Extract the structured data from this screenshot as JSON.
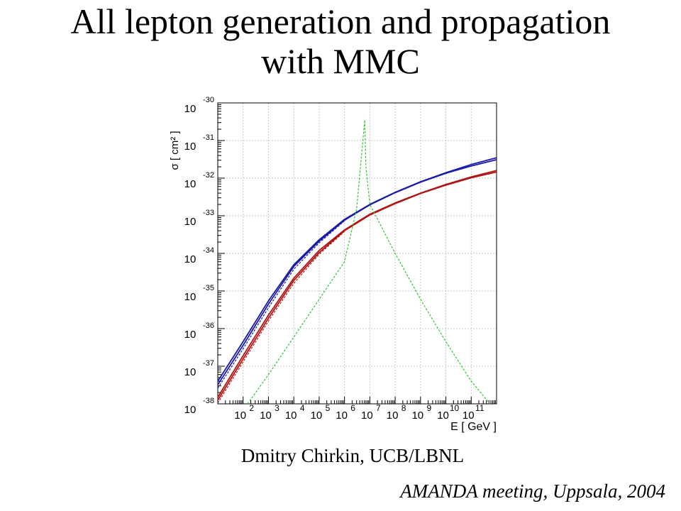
{
  "slide": {
    "title_line1": "All lepton generation and propagation",
    "title_line2": "with MMC",
    "author": "Dmitry Chirkin, UCB/LBNL",
    "meeting": "AMANDA meeting, Uppsala, 2004"
  },
  "chart_data": {
    "type": "line",
    "title": "",
    "xlabel": "E [ GeV ]",
    "ylabel": "σ [ cm² ]",
    "x_scale": "log",
    "y_scale": "log",
    "xlim": [
      10,
      1000000000000.0
    ],
    "ylim": [
      1e-38,
      1e-30
    ],
    "grid": true,
    "x_tick_labels": [
      {
        "base": "10",
        "exp": "2",
        "value": 100
      },
      {
        "base": "10",
        "exp": "3",
        "value": 1000
      },
      {
        "base": "10",
        "exp": "4",
        "value": 10000
      },
      {
        "base": "10",
        "exp": "5",
        "value": 100000
      },
      {
        "base": "10",
        "exp": "6",
        "value": 1000000
      },
      {
        "base": "10",
        "exp": "7",
        "value": 10000000
      },
      {
        "base": "10",
        "exp": "8",
        "value": 100000000
      },
      {
        "base": "10",
        "exp": "9",
        "value": 1000000000
      },
      {
        "base": "10",
        "exp": "10",
        "value": 10000000000
      },
      {
        "base": "10",
        "exp": "11",
        "value": 100000000000
      }
    ],
    "y_tick_labels": [
      {
        "base": "10",
        "exp": "-30",
        "value": 1e-30
      },
      {
        "base": "10",
        "exp": "-31",
        "value": 1e-31
      },
      {
        "base": "10",
        "exp": "-32",
        "value": 1e-32
      },
      {
        "base": "10",
        "exp": "-33",
        "value": 1e-33
      },
      {
        "base": "10",
        "exp": "-34",
        "value": 1e-34
      },
      {
        "base": "10",
        "exp": "-35",
        "value": 1e-35
      },
      {
        "base": "10",
        "exp": "-36",
        "value": 1e-36
      },
      {
        "base": "10",
        "exp": "-37",
        "value": 1e-37
      },
      {
        "base": "10",
        "exp": "-38",
        "value": 1e-38
      }
    ],
    "series": [
      {
        "color": "#1a1aa6",
        "dash": false,
        "x": [
          10,
          100,
          1000,
          10000,
          100000,
          1000000,
          10000000,
          100000000,
          1000000000,
          10000000000,
          100000000000,
          1000000000000
        ],
        "y": [
          4e-38,
          4.5e-37,
          5.5e-36,
          5e-35,
          2.3e-34,
          8e-34,
          2e-33,
          4.2e-33,
          8e-33,
          1.4e-32,
          2.3e-32,
          3.5e-32
        ]
      },
      {
        "color": "#1a1aa6",
        "dash": false,
        "x": [
          10,
          100,
          1000,
          10000,
          100000,
          1000000,
          10000000,
          100000000,
          1000000000,
          10000000000,
          100000000000,
          1000000000000
        ],
        "y": [
          3.2e-38,
          3.6e-37,
          4.5e-36,
          4.5e-35,
          2.1e-34,
          7.6e-34,
          1.95e-33,
          4.1e-33,
          7.8e-33,
          1.35e-32,
          2.1e-32,
          3.1e-32
        ]
      },
      {
        "color": "#1a1aa6",
        "dash": true,
        "x": [
          10,
          100,
          1000,
          10000,
          100000,
          1000000
        ],
        "y": [
          2.6e-38,
          2.9e-37,
          3.6e-36,
          3.8e-35,
          1.9e-34,
          7.3e-34
        ]
      },
      {
        "color": "#b01414",
        "dash": false,
        "x": [
          10,
          100,
          1000,
          10000,
          100000,
          1000000,
          10000000,
          100000000,
          1000000000,
          10000000000,
          100000000000,
          1000000000000
        ],
        "y": [
          1.5e-38,
          1.9e-37,
          2.3e-36,
          2.2e-35,
          1.2e-34,
          4.2e-34,
          1.1e-33,
          2.2e-33,
          4e-33,
          6.8e-33,
          1.08e-32,
          1.6e-32
        ]
      },
      {
        "color": "#b01414",
        "dash": false,
        "x": [
          10,
          100,
          1000,
          10000,
          100000,
          1000000,
          10000000,
          100000000,
          1000000000,
          10000000000,
          100000000000,
          1000000000000
        ],
        "y": [
          1.25e-38,
          1.55e-37,
          1.9e-36,
          1.9e-35,
          1.05e-34,
          4e-34,
          1.05e-33,
          2.1e-33,
          3.9e-33,
          6.5e-33,
          1.02e-32,
          1.45e-32
        ]
      },
      {
        "color": "#b01414",
        "dash": true,
        "x": [
          10,
          100,
          1000,
          10000,
          100000,
          1000000
        ],
        "y": [
          1.05e-38,
          1.3e-37,
          1.6e-36,
          1.6e-35,
          9.5e-35,
          3.8e-34
        ]
      },
      {
        "color": "#2ec82e",
        "dash": true,
        "x": [
          150,
          1000,
          10000,
          100000,
          1000000,
          3000000,
          6300000,
          7000000,
          10000000,
          100000000,
          1000000000,
          10000000000,
          100000000000,
          550000000000
        ],
        "y": [
          1e-38,
          6e-38,
          6e-37,
          6e-36,
          6e-35,
          1.5e-33,
          3.5e-31,
          2e-32,
          2e-33,
          1e-34,
          6e-36,
          4.5e-37,
          4e-38,
          1e-38
        ]
      }
    ]
  }
}
